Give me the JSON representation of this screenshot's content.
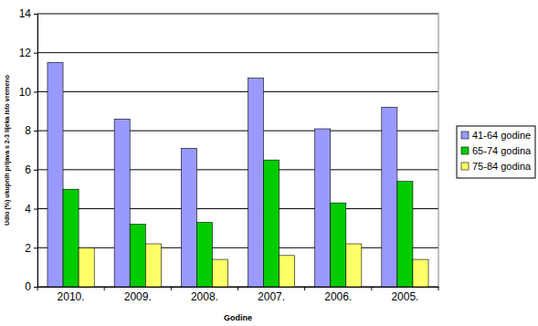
{
  "chart_data": {
    "type": "bar",
    "categories": [
      "2010.",
      "2009.",
      "2008.",
      "2007.",
      "2006.",
      "2005."
    ],
    "series": [
      {
        "name": "41-64 godine",
        "color": "#9999ff",
        "values": [
          11.5,
          8.6,
          7.1,
          10.7,
          8.1,
          9.2
        ]
      },
      {
        "name": "65-74 godina",
        "color": "#00cc00",
        "values": [
          5.0,
          3.2,
          3.3,
          6.5,
          4.3,
          5.4
        ]
      },
      {
        "name": "75-84 godina",
        "color": "#ffff66",
        "values": [
          2.0,
          2.2,
          1.4,
          1.6,
          2.2,
          1.4
        ]
      }
    ],
    "x_label": "Godine",
    "y_label": "Udio (%) ukupnih prijava s 2-3 lijeka isto vremeno",
    "ylim": [
      0,
      14
    ],
    "yticks": [
      0,
      2,
      4,
      6,
      8,
      10,
      12,
      14
    ],
    "grid": true,
    "legend": "right"
  }
}
